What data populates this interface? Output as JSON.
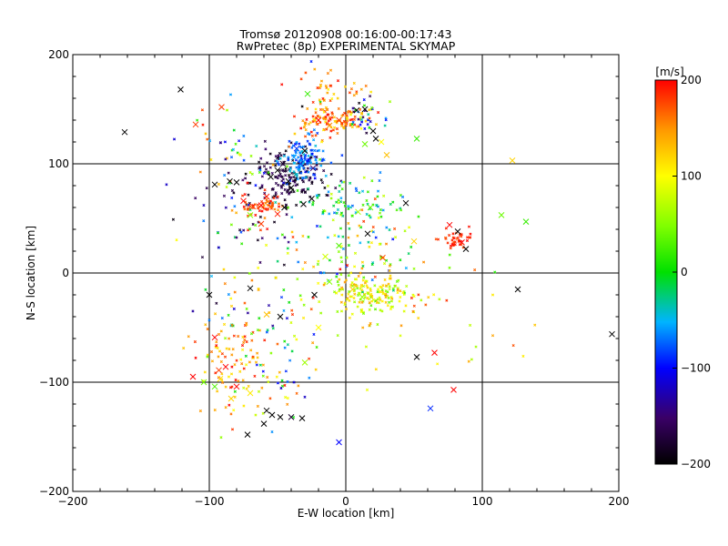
{
  "chart_data": {
    "type": "scatter",
    "title": "Tromsø 20120908 00:16:00-00:17:43",
    "subtitle": "RwPretec (8p) EXPERIMENTAL SKYMAP",
    "xlabel": "E-W location [km]",
    "ylabel": "N-S location [km]",
    "xlim": [
      -200,
      200
    ],
    "ylim": [
      -200,
      200
    ],
    "xticks": [
      -200,
      -100,
      0,
      100,
      200
    ],
    "yticks": [
      -200,
      -100,
      0,
      100,
      200
    ],
    "grid": true,
    "colorbar": {
      "label": "[m/s]",
      "min": -200,
      "max": 200,
      "ticks": [
        200,
        100,
        0,
        -100,
        -200
      ]
    },
    "cross_points": [
      {
        "x": -162,
        "y": 129,
        "v": -200
      },
      {
        "x": -121,
        "y": 168,
        "v": -200
      },
      {
        "x": -110,
        "y": 136,
        "v": 180
      },
      {
        "x": -91,
        "y": 152,
        "v": 180
      },
      {
        "x": -96,
        "y": 81,
        "v": -200
      },
      {
        "x": -85,
        "y": 84,
        "v": -200
      },
      {
        "x": -80,
        "y": 83,
        "v": -200
      },
      {
        "x": -75,
        "y": 66,
        "v": 200
      },
      {
        "x": -68,
        "y": 61,
        "v": 180
      },
      {
        "x": -62,
        "y": 62,
        "v": 200
      },
      {
        "x": -58,
        "y": 70,
        "v": 190
      },
      {
        "x": -55,
        "y": 88,
        "v": -200
      },
      {
        "x": -50,
        "y": 94,
        "v": -200
      },
      {
        "x": -46,
        "y": 100,
        "v": -180
      },
      {
        "x": -42,
        "y": 84,
        "v": -200
      },
      {
        "x": -38,
        "y": 106,
        "v": -60
      },
      {
        "x": -33,
        "y": 100,
        "v": -80
      },
      {
        "x": -30,
        "y": 112,
        "v": -200
      },
      {
        "x": -24,
        "y": 96,
        "v": -150
      },
      {
        "x": -36,
        "y": 114,
        "v": -90
      },
      {
        "x": -40,
        "y": 78,
        "v": -200
      },
      {
        "x": -62,
        "y": 45,
        "v": 180
      },
      {
        "x": -50,
        "y": 54,
        "v": 190
      },
      {
        "x": -45,
        "y": 60,
        "v": -200
      },
      {
        "x": -31,
        "y": 63,
        "v": -200
      },
      {
        "x": -25,
        "y": 68,
        "v": -200
      },
      {
        "x": -70,
        "y": 53,
        "v": 50
      },
      {
        "x": -28,
        "y": 164,
        "v": 20
      },
      {
        "x": -20,
        "y": 140,
        "v": 200
      },
      {
        "x": -12,
        "y": 135,
        "v": 150
      },
      {
        "x": -5,
        "y": 140,
        "v": 180
      },
      {
        "x": 8,
        "y": 149,
        "v": -200
      },
      {
        "x": 14,
        "y": 150,
        "v": -200
      },
      {
        "x": 20,
        "y": 130,
        "v": -200
      },
      {
        "x": 22,
        "y": 123,
        "v": -200
      },
      {
        "x": 14,
        "y": 118,
        "v": 40
      },
      {
        "x": 26,
        "y": 120,
        "v": 100
      },
      {
        "x": 30,
        "y": 108,
        "v": 130
      },
      {
        "x": 52,
        "y": 123,
        "v": 20
      },
      {
        "x": 44,
        "y": 64,
        "v": -200
      },
      {
        "x": 9,
        "y": 56,
        "v": 60
      },
      {
        "x": 18,
        "y": 60,
        "v": 40
      },
      {
        "x": 16,
        "y": 36,
        "v": -200
      },
      {
        "x": -5,
        "y": 25,
        "v": 30
      },
      {
        "x": -15,
        "y": 15,
        "v": 80
      },
      {
        "x": 27,
        "y": 14,
        "v": 180
      },
      {
        "x": 50,
        "y": 29,
        "v": 120
      },
      {
        "x": 76,
        "y": 44,
        "v": 200
      },
      {
        "x": 82,
        "y": 38,
        "v": -200
      },
      {
        "x": 85,
        "y": 28,
        "v": 200
      },
      {
        "x": 88,
        "y": 22,
        "v": -200
      },
      {
        "x": 114,
        "y": 53,
        "v": 40
      },
      {
        "x": 132,
        "y": 47,
        "v": 20
      },
      {
        "x": 122,
        "y": 103,
        "v": 120
      },
      {
        "x": 126,
        "y": -15,
        "v": -200
      },
      {
        "x": -100,
        "y": -20,
        "v": -200
      },
      {
        "x": -70,
        "y": -14,
        "v": -200
      },
      {
        "x": -58,
        "y": -38,
        "v": 130
      },
      {
        "x": -48,
        "y": -40,
        "v": -200
      },
      {
        "x": -96,
        "y": -59,
        "v": 200
      },
      {
        "x": -88,
        "y": -86,
        "v": 200
      },
      {
        "x": -93,
        "y": -89,
        "v": 180
      },
      {
        "x": -92,
        "y": -97,
        "v": 110
      },
      {
        "x": -80,
        "y": -104,
        "v": 200
      },
      {
        "x": -84,
        "y": -115,
        "v": 120
      },
      {
        "x": -96,
        "y": -104,
        "v": 30
      },
      {
        "x": -104,
        "y": -100,
        "v": 40
      },
      {
        "x": -112,
        "y": -95,
        "v": 200
      },
      {
        "x": -70,
        "y": -110,
        "v": 110
      },
      {
        "x": -58,
        "y": -126,
        "v": -200
      },
      {
        "x": -54,
        "y": -130,
        "v": -200
      },
      {
        "x": -48,
        "y": -132,
        "v": -200
      },
      {
        "x": -40,
        "y": -132,
        "v": -180
      },
      {
        "x": -60,
        "y": -138,
        "v": -200
      },
      {
        "x": -72,
        "y": -148,
        "v": -200
      },
      {
        "x": -32,
        "y": -133,
        "v": -200
      },
      {
        "x": -30,
        "y": -82,
        "v": 60
      },
      {
        "x": -23,
        "y": -20,
        "v": -200
      },
      {
        "x": -5,
        "y": -155,
        "v": -100
      },
      {
        "x": 52,
        "y": -77,
        "v": -200
      },
      {
        "x": 65,
        "y": -73,
        "v": 200
      },
      {
        "x": 79,
        "y": -107,
        "v": 200
      },
      {
        "x": 62,
        "y": -124,
        "v": -90
      },
      {
        "x": 195,
        "y": -56,
        "v": -200
      },
      {
        "x": -20,
        "y": -50,
        "v": 100
      },
      {
        "x": 5,
        "y": -15,
        "v": 120
      },
      {
        "x": 12,
        "y": -22,
        "v": 60
      },
      {
        "x": -12,
        "y": -8,
        "v": 50
      }
    ],
    "clusters": [
      {
        "cx": -42,
        "cy": 88,
        "sx": 14,
        "sy": 12,
        "n": 160,
        "vmin": -200,
        "vmax": -150
      },
      {
        "cx": -30,
        "cy": 102,
        "sx": 8,
        "sy": 10,
        "n": 110,
        "vmin": -100,
        "vmax": -40
      },
      {
        "cx": -62,
        "cy": 62,
        "sx": 8,
        "sy": 4,
        "n": 55,
        "vmin": 150,
        "vmax": 200
      },
      {
        "cx": -12,
        "cy": 138,
        "sx": 12,
        "sy": 7,
        "n": 110,
        "vmin": 110,
        "vmax": 200
      },
      {
        "cx": 12,
        "cy": 145,
        "sx": 10,
        "sy": 10,
        "n": 40,
        "vmin": -200,
        "vmax": 200
      },
      {
        "cx": 5,
        "cy": 62,
        "sx": 20,
        "sy": 12,
        "n": 80,
        "vmin": -80,
        "vmax": 80
      },
      {
        "cx": 15,
        "cy": -18,
        "sx": 16,
        "sy": 10,
        "n": 160,
        "vmin": 30,
        "vmax": 150
      },
      {
        "cx": 82,
        "cy": 30,
        "sx": 6,
        "sy": 5,
        "n": 40,
        "vmin": 170,
        "vmax": 200
      },
      {
        "cx": -65,
        "cy": 30,
        "sx": 25,
        "sy": 60,
        "n": 130,
        "vmin": -200,
        "vmax": 200
      },
      {
        "cx": -85,
        "cy": -80,
        "sx": 12,
        "sy": 25,
        "n": 80,
        "vmin": 100,
        "vmax": 200
      },
      {
        "cx": -55,
        "cy": -80,
        "sx": 18,
        "sy": 30,
        "n": 70,
        "vmin": -120,
        "vmax": 200
      },
      {
        "cx": 10,
        "cy": 15,
        "sx": 30,
        "sy": 25,
        "n": 90,
        "vmin": -100,
        "vmax": 200
      },
      {
        "cx": -10,
        "cy": 170,
        "sx": 12,
        "sy": 10,
        "n": 40,
        "vmin": 100,
        "vmax": 200
      },
      {
        "cx": -85,
        "cy": 105,
        "sx": 12,
        "sy": 25,
        "n": 35,
        "vmin": -200,
        "vmax": 200
      },
      {
        "cx": 40,
        "cy": -40,
        "sx": 40,
        "sy": 30,
        "n": 45,
        "vmin": 50,
        "vmax": 200
      }
    ]
  }
}
